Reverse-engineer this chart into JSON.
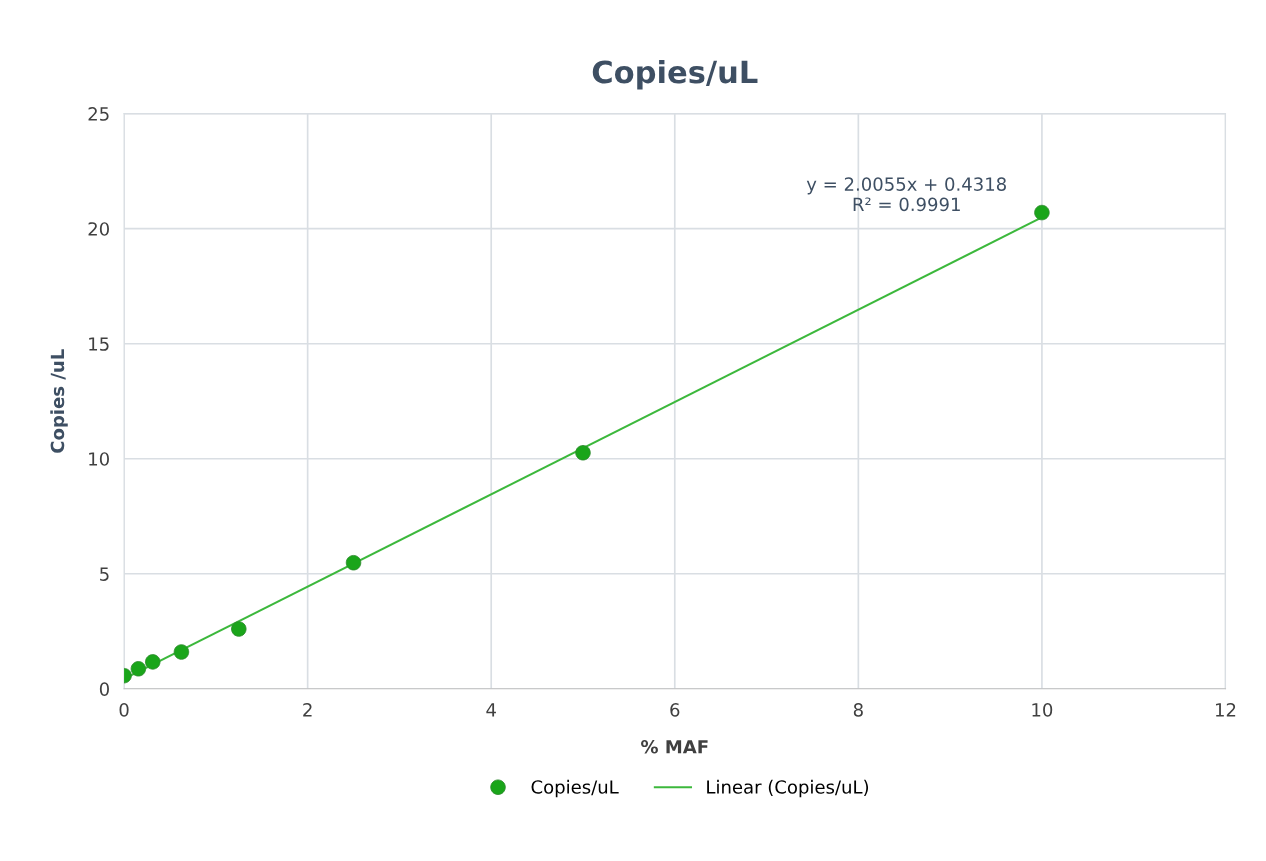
{
  "chart_data": {
    "type": "scatter",
    "title": "Copies/uL",
    "xlabel": "% MAF",
    "ylabel": "Copies /uL",
    "xlim": [
      0,
      12
    ],
    "xticks": [
      0,
      2,
      4,
      6,
      8,
      10,
      12
    ],
    "ylim": [
      0,
      25
    ],
    "yticks": [
      0,
      5,
      10,
      15,
      20,
      25
    ],
    "grid": true,
    "legend": "bottom",
    "series": [
      {
        "name": "Copies/uL",
        "marker": "circle",
        "color": "#1aa51a",
        "x": [
          0,
          0.156,
          0.3125,
          0.625,
          1.25,
          2.5,
          5,
          10
        ],
        "values": [
          0.57,
          0.87,
          1.17,
          1.6,
          2.6,
          5.48,
          10.26,
          20.7
        ]
      },
      {
        "name": "Linear (Copies/uL)",
        "type": "line",
        "color": "#3cb83c",
        "x": [
          0,
          10
        ],
        "values": [
          0.43,
          20.49
        ]
      }
    ],
    "annotations": [
      {
        "text": "y = 2.0055x + 0.4318\nR² = 0.9991",
        "x": 10,
        "y": 20.49
      }
    ]
  }
}
